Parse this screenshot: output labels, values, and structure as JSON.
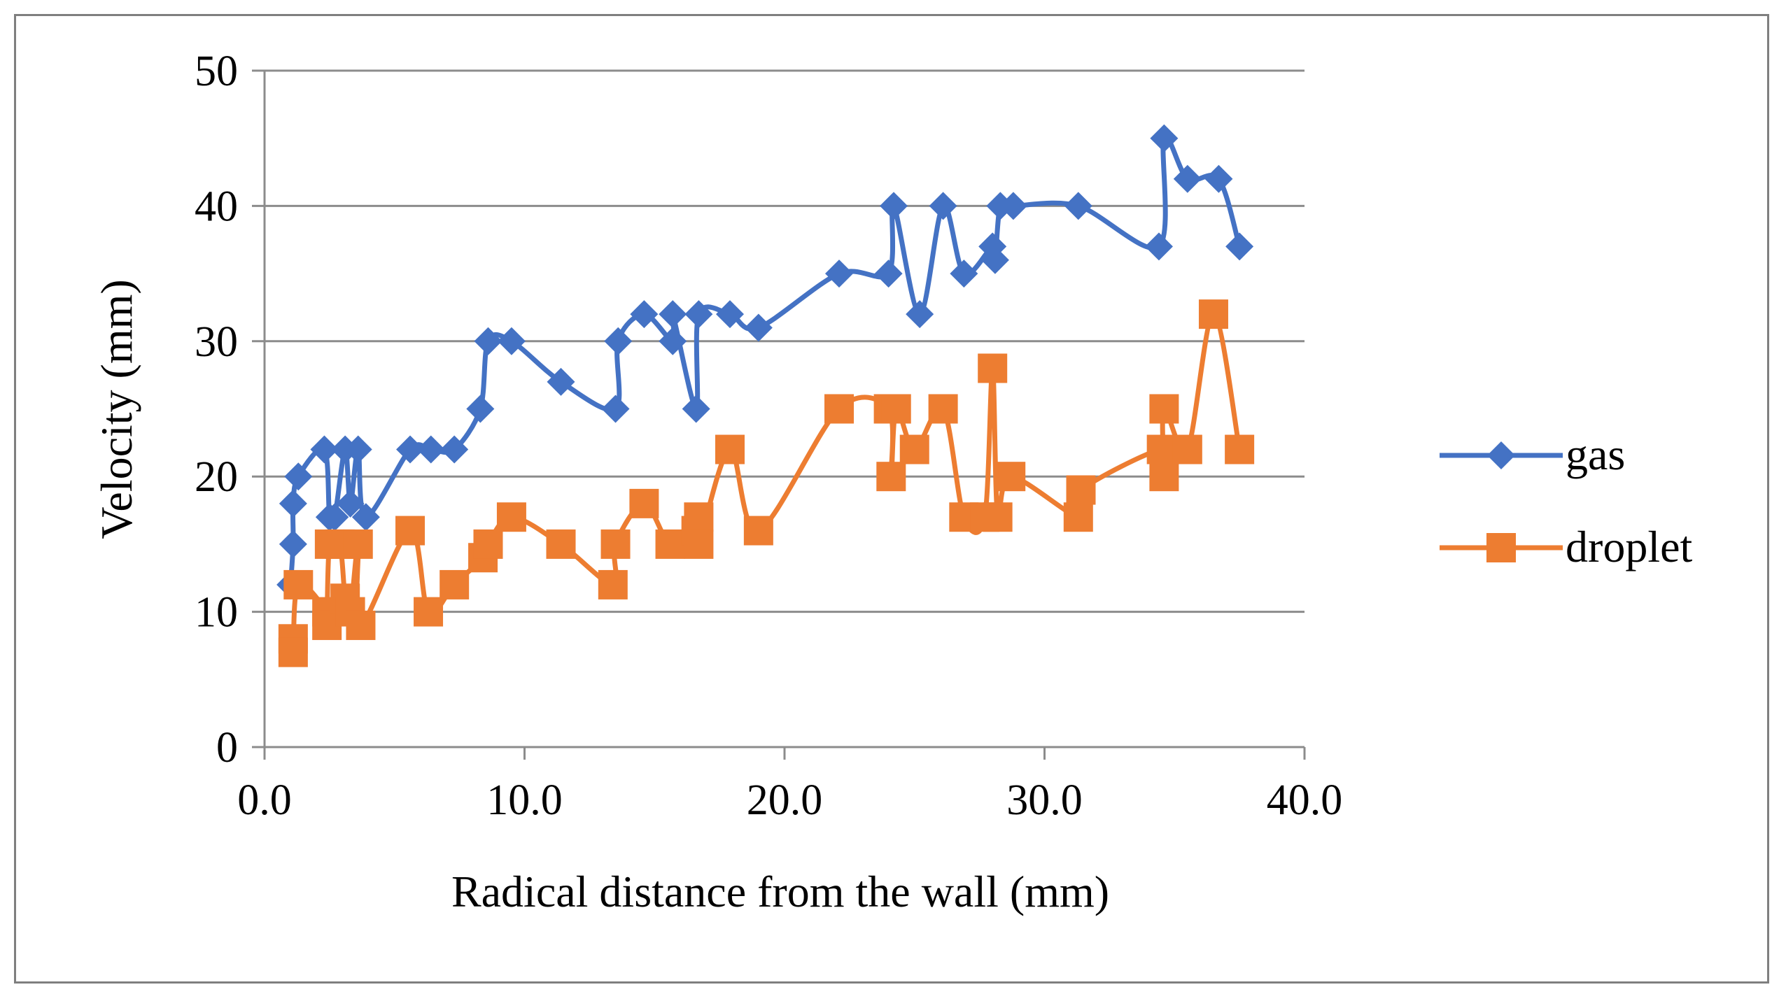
{
  "chart_data": {
    "type": "line",
    "title": "",
    "xlabel": "Radical distance from the wall (mm)",
    "ylabel": "Velocity (mm)",
    "xlim": [
      0,
      40
    ],
    "ylim": [
      0,
      50
    ],
    "x_ticks": [
      "0.0",
      "10.0",
      "20.0",
      "30.0",
      "40.0"
    ],
    "y_ticks": [
      "0",
      "10",
      "20",
      "30",
      "40",
      "50"
    ],
    "grid": "horizontal",
    "legend_position": "right",
    "series": [
      {
        "name": "gas",
        "color": "#4472c4",
        "marker": "diamond",
        "points": [
          [
            1.0,
            12
          ],
          [
            1.1,
            15
          ],
          [
            1.1,
            18
          ],
          [
            1.3,
            20
          ],
          [
            2.3,
            22
          ],
          [
            2.5,
            17
          ],
          [
            2.7,
            17
          ],
          [
            3.1,
            22
          ],
          [
            3.3,
            18
          ],
          [
            3.6,
            22
          ],
          [
            3.9,
            17
          ],
          [
            5.6,
            22
          ],
          [
            6.4,
            22
          ],
          [
            7.3,
            22
          ],
          [
            8.3,
            25
          ],
          [
            8.6,
            30
          ],
          [
            9.5,
            30
          ],
          [
            11.4,
            27
          ],
          [
            13.5,
            25
          ],
          [
            13.6,
            30
          ],
          [
            14.6,
            32
          ],
          [
            15.7,
            30
          ],
          [
            15.7,
            32
          ],
          [
            16.6,
            25
          ],
          [
            16.7,
            32
          ],
          [
            17.9,
            32
          ],
          [
            19.0,
            31
          ],
          [
            22.1,
            35
          ],
          [
            24.0,
            35
          ],
          [
            24.2,
            40
          ],
          [
            25.2,
            32
          ],
          [
            26.1,
            40
          ],
          [
            26.9,
            35
          ],
          [
            28.0,
            37
          ],
          [
            28.1,
            36
          ],
          [
            28.3,
            40
          ],
          [
            28.8,
            40
          ],
          [
            31.3,
            40
          ],
          [
            34.4,
            37
          ],
          [
            34.6,
            45
          ],
          [
            35.5,
            42
          ],
          [
            36.7,
            42
          ],
          [
            37.5,
            37
          ]
        ]
      },
      {
        "name": "droplet",
        "color": "#ed7d31",
        "marker": "square",
        "points": [
          [
            1.1,
            8
          ],
          [
            1.1,
            7
          ],
          [
            1.3,
            12
          ],
          [
            2.4,
            10
          ],
          [
            2.4,
            9
          ],
          [
            2.5,
            15
          ],
          [
            2.9,
            15
          ],
          [
            3.1,
            11
          ],
          [
            3.3,
            10
          ],
          [
            3.6,
            15
          ],
          [
            3.7,
            9
          ],
          [
            5.6,
            16
          ],
          [
            6.3,
            10
          ],
          [
            7.3,
            12
          ],
          [
            8.4,
            14
          ],
          [
            8.6,
            15
          ],
          [
            9.5,
            17
          ],
          [
            11.4,
            15
          ],
          [
            13.4,
            12
          ],
          [
            13.5,
            15
          ],
          [
            14.6,
            18
          ],
          [
            15.6,
            15
          ],
          [
            16.6,
            16
          ],
          [
            16.7,
            17
          ],
          [
            16.7,
            15
          ],
          [
            17.9,
            22
          ],
          [
            19.0,
            16
          ],
          [
            22.1,
            25
          ],
          [
            24.0,
            25
          ],
          [
            24.1,
            20
          ],
          [
            24.3,
            25
          ],
          [
            25.0,
            22
          ],
          [
            26.1,
            25
          ],
          [
            26.9,
            17
          ],
          [
            27.7,
            17
          ],
          [
            28.0,
            28
          ],
          [
            28.2,
            17
          ],
          [
            28.7,
            20
          ],
          [
            31.3,
            17
          ],
          [
            31.4,
            19
          ],
          [
            34.5,
            22
          ],
          [
            34.6,
            20
          ],
          [
            34.6,
            25
          ],
          [
            35.5,
            22
          ],
          [
            36.5,
            32
          ],
          [
            37.5,
            22
          ]
        ]
      }
    ]
  }
}
